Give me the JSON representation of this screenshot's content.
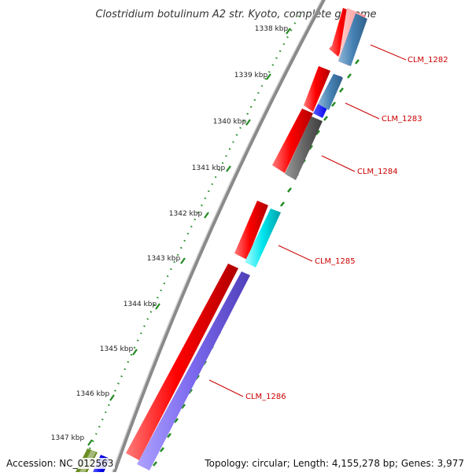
{
  "title": "Clostridium botulinum A2 str. Kyoto, complete genome",
  "footer": {
    "accession": "Accession: NC_012563",
    "topology": "Topology: circular; Length: 4,155,278 bp; Genes: 3,977"
  },
  "scale_ticks": [
    "1338 kbp",
    "1339 kbp",
    "1340 kbp",
    "1341 kbp",
    "1342 kbp",
    "1343 kbp",
    "1344 kbp",
    "1345 kbp",
    "1346 kbp",
    "1347 kbp"
  ],
  "genes": [
    {
      "label": "CLM_1282",
      "color": "#4682b4"
    },
    {
      "label": "CLM_1283",
      "color": "#0000ee"
    },
    {
      "label": "CLM_1284",
      "color": "#666666"
    },
    {
      "label": "CLM_1285",
      "color": "#00e5ee"
    },
    {
      "label": "CLM_1286",
      "color": "#7b68ee"
    }
  ],
  "colors": {
    "forward_feature": "#ff0000",
    "backbone": "#888888",
    "tick_marks": "#228b22",
    "label_line": "#cc0000"
  }
}
